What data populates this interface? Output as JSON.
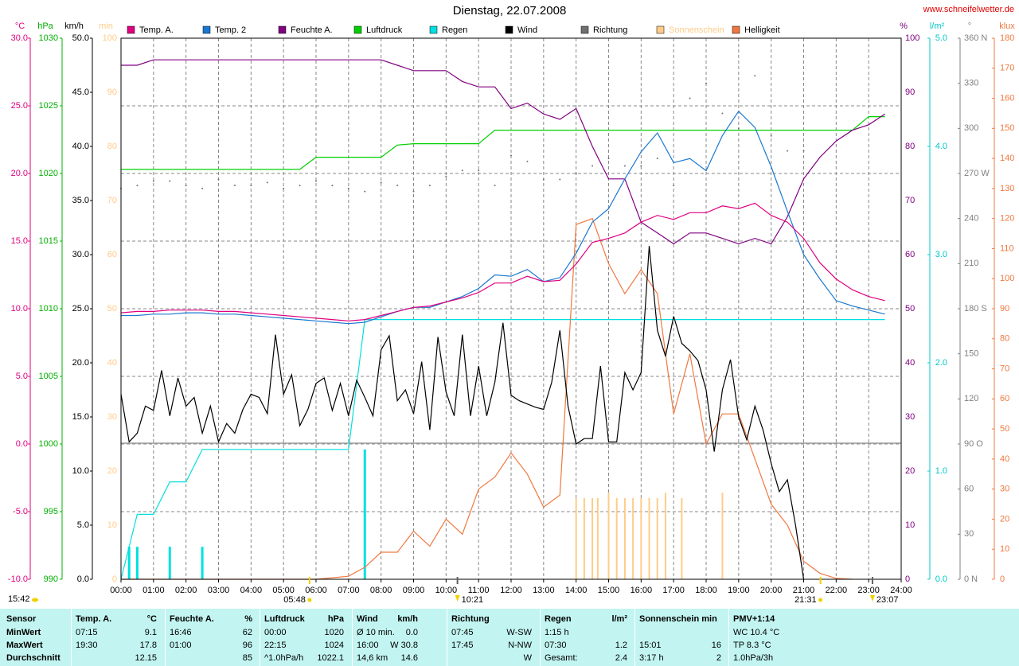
{
  "chart_data": {
    "type": "line",
    "title": "Dienstag, 22.07.2008",
    "source": "www.schneifelwetter.de",
    "xlim": [
      "00:00",
      "24:00"
    ],
    "xticks": [
      "00:00",
      "01:00",
      "02:00",
      "03:00",
      "04:00",
      "05:00",
      "06:00",
      "07:00",
      "08:00",
      "09:00",
      "10:00",
      "11:00",
      "12:00",
      "13:00",
      "14:00",
      "15:00",
      "16:00",
      "17:00",
      "18:00",
      "19:00",
      "20:00",
      "21:00",
      "22:00",
      "23:00",
      "24:00"
    ],
    "x": [
      "00:00",
      "00:30",
      "01:00",
      "01:30",
      "02:00",
      "02:30",
      "03:00",
      "03:30",
      "04:00",
      "04:30",
      "05:00",
      "05:30",
      "06:00",
      "06:30",
      "07:00",
      "07:30",
      "08:00",
      "08:30",
      "09:00",
      "09:30",
      "10:00",
      "10:30",
      "11:00",
      "11:30",
      "12:00",
      "12:30",
      "13:00",
      "13:30",
      "14:00",
      "14:30",
      "15:00",
      "15:30",
      "16:00",
      "16:30",
      "17:00",
      "17:30",
      "18:00",
      "18:30",
      "19:00",
      "19:30",
      "20:00",
      "20:30",
      "21:00",
      "21:30",
      "22:00",
      "22:30",
      "23:00",
      "23:30",
      "24:00"
    ],
    "grid": true,
    "axes": [
      {
        "label": "°C",
        "color": "#e0007f",
        "lim": [
          -10,
          30
        ],
        "ticks": [
          {
            "value": 30,
            "label": "30.0"
          },
          {
            "value": 25,
            "label": "25.0"
          },
          {
            "value": 20,
            "label": "20.0"
          },
          {
            "value": 15,
            "label": "15.0"
          },
          {
            "value": 10,
            "label": "10.0"
          },
          {
            "value": 5,
            "label": "5.0"
          },
          {
            "value": 0,
            "label": "0.0"
          },
          {
            "value": -5,
            "label": "-5.0"
          },
          {
            "value": -10,
            "label": "-10.0"
          }
        ]
      },
      {
        "label": "hPa",
        "color": "#00b000",
        "lim": [
          990,
          1030
        ],
        "ticks": [
          1030,
          1025,
          1020,
          1015,
          1010,
          1005,
          1000,
          995,
          990
        ]
      },
      {
        "label": "km/h",
        "color": "#000000",
        "lim": [
          0,
          50
        ],
        "ticks": [
          {
            "value": 50,
            "label": "50.0"
          },
          {
            "value": 45,
            "label": "45.0"
          },
          {
            "value": 40,
            "label": "40.0"
          },
          {
            "value": 35,
            "label": "35.0"
          },
          {
            "value": 30,
            "label": "30.0"
          },
          {
            "value": 25,
            "label": "25.0"
          },
          {
            "value": 20,
            "label": "20.0"
          },
          {
            "value": 15,
            "label": "15.0"
          },
          {
            "value": 10,
            "label": "10.0"
          },
          {
            "value": 5,
            "label": "5.0"
          },
          {
            "value": 0,
            "label": "0.0"
          }
        ]
      },
      {
        "label": "min",
        "color": "#ffcc88",
        "lim": [
          0,
          100
        ],
        "ticks": [
          100,
          90,
          80,
          70,
          60,
          50,
          40,
          30,
          20,
          10,
          0
        ]
      },
      {
        "label": "%",
        "color": "#800080",
        "lim": [
          0,
          100
        ],
        "ticks": [
          100,
          90,
          80,
          70,
          60,
          50,
          40,
          30,
          20,
          10,
          0
        ]
      },
      {
        "label": "l/m²",
        "color": "#00c8c8",
        "lim": [
          0,
          5
        ],
        "ticks": [
          {
            "value": 5,
            "label": "5.0"
          },
          {
            "value": 4,
            "label": "4.0"
          },
          {
            "value": 3,
            "label": "3.0"
          },
          {
            "value": 2,
            "label": "2.0"
          },
          {
            "value": 1,
            "label": "1.0"
          },
          {
            "value": 0,
            "label": "0.0"
          }
        ]
      },
      {
        "label": "°",
        "color": "#808080",
        "lim": [
          0,
          360
        ],
        "ticks": [
          {
            "value": 360,
            "label": "360 N"
          },
          330,
          300,
          {
            "value": 270,
            "label": "270 W"
          },
          240,
          210,
          {
            "value": 180,
            "label": "180 S"
          },
          150,
          120,
          {
            "value": 90,
            "label": "90 O"
          },
          60,
          30,
          {
            "value": 0,
            "label": "0 N"
          }
        ]
      },
      {
        "label": "klux",
        "color": "#f07840",
        "lim": [
          0,
          180
        ],
        "ticks": [
          180,
          170,
          160,
          150,
          140,
          130,
          120,
          110,
          100,
          90,
          80,
          70,
          60,
          50,
          40,
          30,
          20,
          10,
          0
        ]
      }
    ],
    "series": [
      {
        "name": "Sonnenschein",
        "color": "#ffcc88",
        "axis": "min",
        "mark": "bars",
        "x": [
          "14:00",
          "14:15",
          "14:30",
          "14:40",
          "15:00",
          "15:15",
          "15:30",
          "15:45",
          "16:00",
          "16:15",
          "16:30",
          "16:45",
          "17:15",
          "18:30"
        ],
        "values": [
          15,
          15,
          15,
          15,
          16,
          15,
          15,
          15,
          15,
          15,
          15,
          16,
          15,
          16
        ]
      },
      {
        "name": "Regen",
        "color": "#00e0e0",
        "axis": "l/m²",
        "mark": "line",
        "values": [
          0,
          0.6,
          0.6,
          0.9,
          0.9,
          1.2,
          1.2,
          1.2,
          1.2,
          1.2,
          1.2,
          1.2,
          1.2,
          1.2,
          1.2,
          2.4,
          2.4,
          2.4,
          2.4,
          2.4,
          2.4,
          2.4,
          2.4,
          2.4,
          2.4,
          2.4,
          2.4,
          2.4,
          2.4,
          2.4,
          2.4,
          2.4,
          2.4,
          2.4,
          2.4,
          2.4,
          2.4,
          2.4,
          2.4,
          2.4,
          2.4,
          2.4,
          2.4,
          2.4,
          2.4,
          2.4,
          2.4,
          2.4,
          null
        ],
        "bar_x": [
          "00:15",
          "00:30",
          "01:30",
          "02:30",
          "07:30"
        ],
        "bar_values": [
          0.3,
          0.3,
          0.3,
          0.3,
          1.2
        ]
      },
      {
        "name": "Helligkeit",
        "color": "#f07840",
        "axis": "klux",
        "mark": "line",
        "values": [
          0,
          0,
          0,
          0,
          0,
          0,
          0,
          0,
          0,
          0,
          0,
          0,
          0,
          0.5,
          1,
          4,
          9,
          9,
          16,
          11,
          20,
          15,
          30,
          34,
          42,
          35,
          24,
          28,
          118,
          120,
          105,
          95,
          103,
          95,
          55,
          75,
          45,
          55,
          55,
          40,
          25,
          18,
          6,
          2,
          0.3,
          0,
          null,
          null,
          null
        ]
      },
      {
        "name": "Luftdruck",
        "color": "#00d000",
        "axis": "hPa",
        "mark": "line",
        "values": [
          1020.3,
          1020.3,
          1020.3,
          1020.3,
          1020.3,
          1020.3,
          1020.3,
          1020.3,
          1020.3,
          1020.3,
          1020.3,
          1020.3,
          1021.2,
          1021.2,
          1021.2,
          1021.2,
          1021.2,
          1022.1,
          1022.2,
          1022.2,
          1022.2,
          1022.2,
          1022.2,
          1023.2,
          1023.2,
          1023.2,
          1023.2,
          1023.2,
          1023.2,
          1023.2,
          1023.2,
          1023.2,
          1023.2,
          1023.2,
          1023.2,
          1023.2,
          1023.2,
          1023.2,
          1023.2,
          1023.2,
          1023.2,
          1023.2,
          1023.2,
          1023.2,
          1023.2,
          1023.2,
          1024.2,
          1024.2,
          null
        ]
      },
      {
        "name": "Feuchte A.",
        "color": "#800080",
        "axis": "%",
        "mark": "line",
        "values": [
          95,
          95,
          96,
          96,
          96,
          96,
          96,
          96,
          96,
          96,
          96,
          96,
          96,
          96,
          96,
          96,
          96,
          95,
          94,
          94,
          94,
          92,
          91,
          91,
          87,
          88,
          86,
          85,
          87,
          80,
          74,
          74,
          66,
          64,
          62,
          64,
          64,
          63,
          62,
          63,
          62,
          67,
          74,
          78,
          81,
          83,
          84,
          86,
          null
        ]
      },
      {
        "name": "Temp. 2",
        "color": "#1a78d0",
        "axis": "°C",
        "mark": "line",
        "values": [
          9.5,
          9.5,
          9.6,
          9.6,
          9.7,
          9.7,
          9.6,
          9.6,
          9.5,
          9.4,
          9.3,
          9.2,
          9.1,
          9.0,
          8.9,
          9.0,
          9.4,
          9.8,
          10.1,
          10.1,
          10.5,
          10.9,
          11.5,
          12.5,
          12.4,
          12.9,
          12.0,
          12.3,
          14.1,
          16.4,
          17.4,
          19.6,
          21.6,
          23.0,
          20.8,
          21.1,
          20.2,
          22.8,
          24.6,
          23.4,
          20.5,
          17.2,
          14.0,
          12.2,
          10.6,
          10.2,
          9.9,
          9.6,
          null
        ]
      },
      {
        "name": "Temp. A.",
        "color": "#e0007f",
        "axis": "°C",
        "mark": "line",
        "values": [
          9.7,
          9.8,
          9.8,
          9.9,
          9.9,
          9.9,
          9.8,
          9.8,
          9.7,
          9.6,
          9.5,
          9.4,
          9.3,
          9.2,
          9.1,
          9.2,
          9.5,
          9.8,
          10.1,
          10.2,
          10.5,
          10.8,
          11.2,
          11.9,
          11.9,
          12.4,
          12.0,
          12.1,
          13.3,
          14.9,
          15.2,
          15.6,
          16.4,
          16.9,
          16.6,
          17.1,
          17.1,
          17.6,
          17.4,
          17.8,
          16.9,
          16.4,
          15.2,
          13.4,
          12.2,
          11.4,
          10.9,
          10.6,
          null
        ]
      },
      {
        "name": "Wind",
        "color": "#000000",
        "axis": "km/h",
        "mark": "line",
        "x": [
          "00:00",
          "00:15",
          "00:30",
          "00:45",
          "01:00",
          "01:15",
          "01:30",
          "01:45",
          "02:00",
          "02:15",
          "02:30",
          "02:45",
          "03:00",
          "03:15",
          "03:30",
          "03:45",
          "04:00",
          "04:15",
          "04:30",
          "04:45",
          "05:00",
          "05:15",
          "05:30",
          "05:45",
          "06:00",
          "06:15",
          "06:30",
          "06:45",
          "07:00",
          "07:15",
          "07:30",
          "07:45",
          "08:00",
          "08:15",
          "08:30",
          "08:45",
          "09:00",
          "09:15",
          "09:30",
          "09:45",
          "10:00",
          "10:15",
          "10:30",
          "10:45",
          "11:00",
          "11:15",
          "11:30",
          "11:45",
          "12:00",
          "12:15",
          "12:30",
          "12:45",
          "13:00",
          "13:15",
          "13:30",
          "13:45",
          "14:00",
          "14:15",
          "14:30",
          "14:45",
          "15:00",
          "15:15",
          "15:30",
          "15:45",
          "16:00",
          "16:15",
          "16:30",
          "16:45",
          "17:00",
          "17:15",
          "17:30",
          "17:45",
          "18:00",
          "18:15",
          "18:30",
          "18:45",
          "19:00",
          "19:15",
          "19:30",
          "19:45",
          "20:00",
          "20:15",
          "20:30",
          "20:45",
          "21:00"
        ],
        "values": [
          17.1,
          12.7,
          13.5,
          16.0,
          15.6,
          19.3,
          15.1,
          18.6,
          16.0,
          16.8,
          13.5,
          16.0,
          12.7,
          14.4,
          13.5,
          15.7,
          17.1,
          16.8,
          15.3,
          22.6,
          17.1,
          18.9,
          14.2,
          15.7,
          18.1,
          18.6,
          15.6,
          18.1,
          15.1,
          18.4,
          16.8,
          15.1,
          21.2,
          22.5,
          16.5,
          17.5,
          15.3,
          20.1,
          13.8,
          22.4,
          17.3,
          15.1,
          22.6,
          15.1,
          19.7,
          15.1,
          18.2,
          23.7,
          17.0,
          16.5,
          16.2,
          15.9,
          15.7,
          18.2,
          23.0,
          16.0,
          12.5,
          13.0,
          13.0,
          19.7,
          12.7,
          12.7,
          19.1,
          17.5,
          19.1,
          30.8,
          23.0,
          20.6,
          24.3,
          21.8,
          21.1,
          20.2,
          17.5,
          11.8,
          17.5,
          20.3,
          15.0,
          12.9,
          16.0,
          13.8,
          10.7,
          8.1,
          9.2,
          5.0,
          0.0
        ]
      },
      {
        "name": "Richtung",
        "color": "#707070",
        "axis": "°",
        "mark": "dots",
        "values": [
          260,
          262,
          265,
          265,
          262,
          260,
          266,
          262,
          262,
          264,
          260,
          262,
          265,
          262,
          260,
          258,
          264,
          262,
          258,
          262,
          268,
          272,
          272,
          262,
          282,
          278,
          266,
          266,
          270,
          275,
          280,
          275,
          275,
          280,
          262,
          320,
          330,
          310,
          300,
          335,
          295,
          285,
          285,
          null,
          null,
          null,
          null,
          null,
          null
        ]
      }
    ],
    "legend_order": [
      "Temp. A.",
      "Temp. 2",
      "Feuchte A.",
      "Luftdruck",
      "Regen",
      "Wind",
      "Richtung",
      "Sonnenschein",
      "Helligkeit"
    ],
    "sun_markers": [
      "05:48",
      "21:31"
    ],
    "moon_markers": [
      "10:21",
      "23:07"
    ],
    "day_length": "15:42"
  },
  "table": {
    "columns": [
      {
        "name": "Sensor"
      },
      {
        "name": "Temp. A.",
        "unit": "°C"
      },
      {
        "name": "Feuchte A.",
        "unit": "%"
      },
      {
        "name": "Luftdruck",
        "unit": "hPa"
      },
      {
        "name": "Wind",
        "unit": "km/h"
      },
      {
        "name": "Richtung"
      },
      {
        "name": "Regen",
        "unit": "l/m²"
      },
      {
        "name": "Sonnenschein min"
      },
      {
        "name": "PMV+1:14"
      }
    ],
    "rows": [
      {
        "name": "MinWert",
        "cells": [
          {
            "l": "07:15",
            "r": "9.1"
          },
          {
            "l": "16:46",
            "r": "62"
          },
          {
            "l": "00:00",
            "r": "1020"
          },
          {
            "l": "Ø 10 min.",
            "r": "0.0"
          },
          {
            "l": "07:45",
            "r": "W-SW"
          },
          {
            "l": "1:15 h"
          },
          null,
          {
            "l": "WC 10.4 °C"
          }
        ]
      },
      {
        "name": "MaxWert",
        "cells": [
          {
            "l": "19:30",
            "r": "17.8"
          },
          {
            "l": "01:00",
            "r": "96"
          },
          {
            "l": "22:15",
            "r": "1024"
          },
          {
            "l": "16:00",
            "r": "W 30.8"
          },
          {
            "l": "17:45",
            "r": "N-NW"
          },
          {
            "l": "07:30",
            "r": "1.2"
          },
          {
            "l": "15:01",
            "r": "16"
          },
          {
            "l": "TP 8.3 °C"
          }
        ]
      },
      {
        "name": "Durchschnitt",
        "cells": [
          {
            "r": "12.15"
          },
          {
            "r": "85"
          },
          {
            "l": "^1.0hPa/h",
            "r": "1022.1"
          },
          {
            "l": "14,6 km",
            "r": "14.6"
          },
          {
            "r": "W"
          },
          {
            "l": "Gesamt:",
            "r": "2.4"
          },
          {
            "l": "3:17 h",
            "r": "2"
          },
          {
            "l": "1.0hPa/3h"
          }
        ]
      }
    ]
  }
}
